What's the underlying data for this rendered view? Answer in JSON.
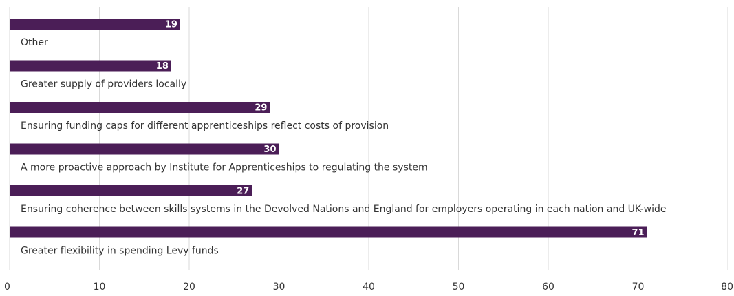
{
  "chart_data": {
    "type": "bar",
    "orientation": "horizontal",
    "categories": [
      "Other",
      "Greater supply of providers locally",
      "Ensuring funding caps for different apprenticeships reflect costs of provision",
      "A more proactive approach by Institute for Apprenticeships to regulating the system",
      "Ensuring coherence between skills systems in the Devolved Nations and England for employers operating in each nation and UK-wide",
      "Greater flexibility in spending Levy funds"
    ],
    "values": [
      19,
      18,
      29,
      30,
      27,
      71
    ],
    "xlim": [
      0,
      80
    ],
    "xticks": [
      0,
      10,
      20,
      30,
      40,
      50,
      60,
      70,
      80
    ],
    "grid": "vertical",
    "bar_color": "#4b1e57",
    "data_labels": true
  }
}
